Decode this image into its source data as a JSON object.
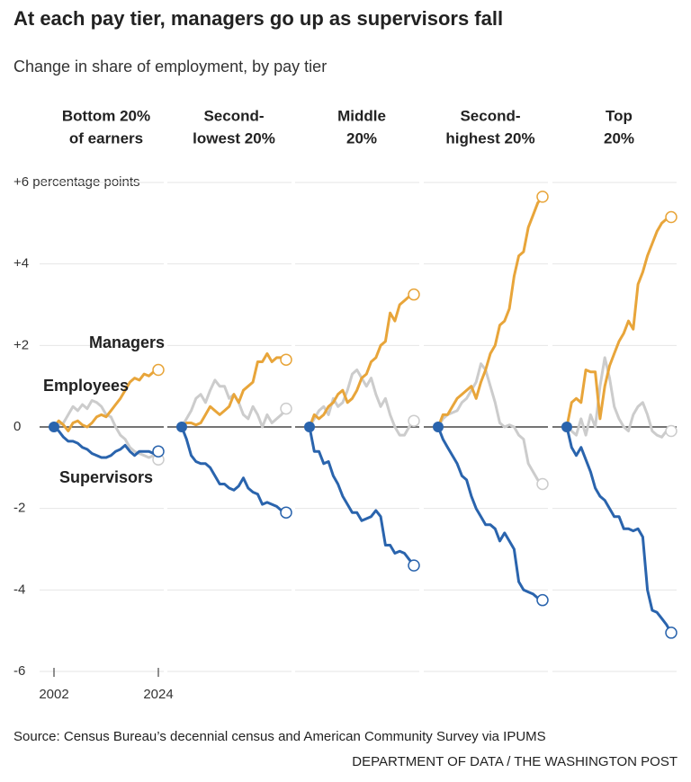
{
  "title": "At each pay tier, managers go up as supervisors fall",
  "subtitle": "Change in share of employment, by pay tier",
  "source": "Source: Census Bureau’s decennial census and American Community Survey via IPUMS",
  "credit": "DEPARTMENT OF DATA / THE WASHINGTON POST",
  "chart_data": {
    "type": "line",
    "x": [
      2002,
      2003,
      2004,
      2005,
      2006,
      2007,
      2008,
      2009,
      2010,
      2011,
      2012,
      2013,
      2014,
      2015,
      2016,
      2017,
      2018,
      2019,
      2020,
      2021,
      2022,
      2023,
      2024
    ],
    "xlim": [
      2002,
      2024
    ],
    "xticks": [
      2002,
      2024
    ],
    "ylim": [
      -6,
      6
    ],
    "yticks": [
      -6,
      -4,
      -2,
      0,
      {
        "value": 2,
        "label": "+2"
      },
      {
        "value": 4,
        "label": "+4"
      },
      {
        "value": 6,
        "label": "+6 percentage points"
      }
    ],
    "grid": true,
    "series": [
      {
        "name": "Managers",
        "color": "#e8a53a"
      },
      {
        "name": "Employees",
        "color": "#cccccc"
      },
      {
        "name": "Supervisors",
        "color": "#2a64ad"
      }
    ],
    "panels": [
      {
        "title": [
          "Bottom 20%",
          "of earners"
        ],
        "series": [
          {
            "values": [
              0,
              0.15,
              0.05,
              -0.1,
              0.1,
              0.15,
              0.05,
              0,
              0.1,
              0.25,
              0.3,
              0.25,
              0.4,
              0.55,
              0.7,
              0.9,
              1.1,
              1.2,
              1.15,
              1.3,
              1.25,
              1.35,
              1.4
            ]
          },
          {
            "values": [
              0,
              0.05,
              0.1,
              0.3,
              0.5,
              0.4,
              0.55,
              0.45,
              0.65,
              0.6,
              0.5,
              0.3,
              0.25,
              0,
              -0.2,
              -0.3,
              -0.5,
              -0.6,
              -0.65,
              -0.7,
              -0.75,
              -0.7,
              -0.8
            ]
          },
          {
            "values": [
              0,
              -0.1,
              -0.25,
              -0.35,
              -0.35,
              -0.4,
              -0.5,
              -0.55,
              -0.65,
              -0.7,
              -0.75,
              -0.75,
              -0.7,
              -0.6,
              -0.55,
              -0.45,
              -0.6,
              -0.7,
              -0.6,
              -0.6,
              -0.6,
              -0.65,
              -0.6
            ]
          }
        ]
      },
      {
        "title": [
          "Second-",
          "lowest 20%"
        ],
        "series": [
          {
            "values": [
              0,
              0.1,
              0.1,
              0.05,
              0.1,
              0.3,
              0.5,
              0.4,
              0.3,
              0.4,
              0.5,
              0.8,
              0.6,
              0.9,
              1.0,
              1.1,
              1.6,
              1.6,
              1.8,
              1.6,
              1.7,
              1.7,
              1.65
            ]
          },
          {
            "values": [
              0,
              0.2,
              0.4,
              0.7,
              0.8,
              0.6,
              0.9,
              1.15,
              1.0,
              1.0,
              0.7,
              0.8,
              0.6,
              0.3,
              0.2,
              0.5,
              0.3,
              0,
              0.3,
              0.1,
              0.2,
              0.3,
              0.45
            ]
          },
          {
            "values": [
              0,
              -0.3,
              -0.7,
              -0.85,
              -0.9,
              -0.9,
              -1.0,
              -1.2,
              -1.4,
              -1.4,
              -1.5,
              -1.55,
              -1.45,
              -1.25,
              -1.5,
              -1.6,
              -1.65,
              -1.9,
              -1.85,
              -1.9,
              -1.95,
              -2.05,
              -2.1
            ]
          }
        ]
      },
      {
        "title": [
          "Middle",
          "20%"
        ],
        "series": [
          {
            "values": [
              0,
              0.3,
              0.2,
              0.3,
              0.5,
              0.6,
              0.8,
              0.9,
              0.6,
              0.7,
              0.9,
              1.2,
              1.3,
              1.6,
              1.7,
              2.0,
              2.1,
              2.8,
              2.6,
              3.0,
              3.1,
              3.2,
              3.25
            ]
          },
          {
            "values": [
              0,
              0.2,
              0.4,
              0.5,
              0.3,
              0.7,
              0.5,
              0.6,
              0.9,
              1.3,
              1.4,
              1.2,
              1.0,
              1.2,
              0.8,
              0.5,
              0.7,
              0.3,
              0,
              -0.2,
              -0.2,
              0,
              0.15
            ]
          },
          {
            "values": [
              0,
              -0.6,
              -0.6,
              -0.9,
              -0.85,
              -1.2,
              -1.4,
              -1.7,
              -1.9,
              -2.1,
              -2.1,
              -2.3,
              -2.25,
              -2.2,
              -2.05,
              -2.2,
              -2.9,
              -2.9,
              -3.1,
              -3.05,
              -3.1,
              -3.25,
              -3.4
            ]
          }
        ]
      },
      {
        "title": [
          "Second-",
          "highest 20%"
        ],
        "series": [
          {
            "values": [
              0,
              0.3,
              0.3,
              0.5,
              0.7,
              0.8,
              0.9,
              1.0,
              0.7,
              1.1,
              1.4,
              1.8,
              2.0,
              2.5,
              2.6,
              2.9,
              3.7,
              4.2,
              4.3,
              4.9,
              5.2,
              5.5,
              5.65
            ]
          },
          {
            "values": [
              0,
              0.2,
              0.3,
              0.35,
              0.4,
              0.6,
              0.7,
              0.9,
              1.1,
              1.55,
              1.4,
              1.0,
              0.6,
              0.1,
              0,
              0.05,
              0,
              -0.2,
              -0.3,
              -0.9,
              -1.1,
              -1.3,
              -1.4
            ]
          },
          {
            "values": [
              0,
              -0.3,
              -0.5,
              -0.7,
              -0.9,
              -1.2,
              -1.3,
              -1.7,
              -2.0,
              -2.2,
              -2.4,
              -2.4,
              -2.5,
              -2.8,
              -2.6,
              -2.8,
              -3.0,
              -3.8,
              -4.0,
              -4.05,
              -4.1,
              -4.2,
              -4.25
            ]
          }
        ]
      },
      {
        "title": [
          "Top",
          "20%"
        ],
        "series": [
          {
            "values": [
              0,
              0.6,
              0.7,
              0.6,
              1.4,
              1.35,
              1.35,
              0.2,
              1.0,
              1.5,
              1.8,
              2.1,
              2.3,
              2.6,
              2.4,
              3.5,
              3.8,
              4.2,
              4.5,
              4.8,
              5.0,
              5.1,
              5.15
            ]
          },
          {
            "values": [
              0,
              -0.1,
              -0.2,
              0.2,
              -0.2,
              0.3,
              0,
              1.0,
              1.7,
              1.2,
              0.5,
              0.2,
              0,
              -0.1,
              0.3,
              0.5,
              0.6,
              0.3,
              -0.1,
              -0.2,
              -0.25,
              -0.1,
              -0.1
            ]
          },
          {
            "values": [
              0,
              -0.5,
              -0.7,
              -0.5,
              -0.8,
              -1.1,
              -1.5,
              -1.7,
              -1.8,
              -2.0,
              -2.2,
              -2.2,
              -2.5,
              -2.5,
              -2.55,
              -2.5,
              -2.7,
              -4.0,
              -4.5,
              -4.55,
              -4.7,
              -4.85,
              -5.05
            ]
          }
        ]
      }
    ]
  }
}
